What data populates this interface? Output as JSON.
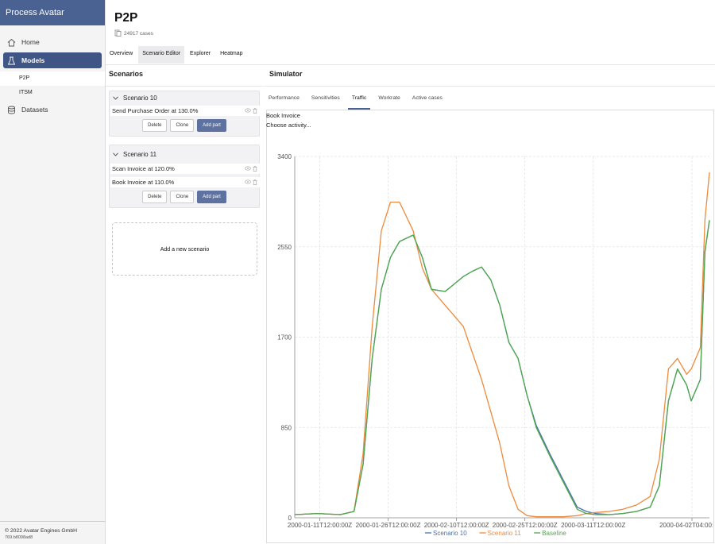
{
  "app": {
    "title": "Process Avatar",
    "footer_copyright": "© 2022 Avatar Engines GmbH",
    "footer_version": "769.b8098ad8"
  },
  "sidebar": {
    "items": [
      {
        "label": "Home",
        "icon": "home-icon"
      },
      {
        "label": "Models",
        "icon": "flask-icon"
      },
      {
        "label": "Datasets",
        "icon": "database-icon"
      }
    ],
    "models": [
      "P2P",
      "ITSM"
    ]
  },
  "header": {
    "title": "P2P",
    "cases": "24917 cases",
    "tabs": [
      "Overview",
      "Scenario Editor",
      "Explorer",
      "Heatmap"
    ]
  },
  "scenarios": {
    "title": "Scenarios",
    "delete_label": "Delete",
    "clone_label": "Clone",
    "add_part_label": "Add part",
    "add_new_label": "Add a new scenario",
    "list": [
      {
        "name": "Scenario 10",
        "parts": [
          "Send Purchase Order at 130.0%"
        ]
      },
      {
        "name": "Scenario 11",
        "parts": [
          "Scan Invoice at 120.0%",
          "Book Invoice at 110.0%"
        ]
      }
    ]
  },
  "simulator": {
    "title": "Simulator",
    "tabs": [
      "Performance",
      "Sensitivities",
      "Traffic",
      "Workrate",
      "Active cases"
    ],
    "active_tab": "Traffic",
    "activity_label": "Book Invoice",
    "activity_placeholder": "Choose activity..."
  },
  "colors": {
    "brand": "#4a6291",
    "active_nav": "#3e5585",
    "primary_button": "#5d729f",
    "scenario10": "#4c72b0",
    "scenario11": "#ed8a3c",
    "baseline": "#4ea84a"
  },
  "chart_data": {
    "type": "line",
    "title": "",
    "xlabel": "",
    "ylabel": "",
    "ylim": [
      0,
      3400
    ],
    "y_ticks": [
      0,
      850,
      1700,
      2550,
      3400
    ],
    "x_tick_labels": [
      "2000-01-11T12:00:00Z",
      "2000-01-26T12:00:00Z",
      "2000-02-10T12:00:00Z",
      "2000-02-25T12:00:00Z",
      "2000-03-11T12:00:00Z",
      "2000-04-02T04:00:00Z"
    ],
    "x": [
      "2000-01-06",
      "2000-01-11",
      "2000-01-16",
      "2000-01-19",
      "2000-01-21",
      "2000-01-23",
      "2000-01-25",
      "2000-01-27",
      "2000-01-29",
      "2000-02-01",
      "2000-02-03",
      "2000-02-05",
      "2000-02-08",
      "2000-02-10",
      "2000-02-12",
      "2000-02-14",
      "2000-02-16",
      "2000-02-18",
      "2000-02-20",
      "2000-02-22",
      "2000-02-24",
      "2000-02-26",
      "2000-02-28",
      "2000-03-02",
      "2000-03-05",
      "2000-03-08",
      "2000-03-10",
      "2000-03-12",
      "2000-03-15",
      "2000-03-18",
      "2000-03-21",
      "2000-03-24",
      "2000-03-26",
      "2000-03-28",
      "2000-03-30",
      "2000-04-01",
      "2000-04-02",
      "2000-04-04",
      "2000-04-05",
      "2000-04-06"
    ],
    "series": [
      {
        "name": "Scenario 10",
        "color": "#4c72b0",
        "values": [
          30,
          40,
          30,
          60,
          500,
          1500,
          2150,
          2450,
          2600,
          2660,
          2450,
          2150,
          2130,
          2200,
          2270,
          2320,
          2360,
          2240,
          2000,
          1650,
          1500,
          1150,
          870,
          600,
          350,
          100,
          60,
          40,
          30,
          40,
          60,
          100,
          300,
          1100,
          1400,
          1250,
          1100,
          1300,
          2500,
          2800
        ]
      },
      {
        "name": "Scenario 11",
        "color": "#ed8a3c",
        "values": [
          30,
          40,
          30,
          60,
          600,
          1800,
          2700,
          2970,
          2970,
          2700,
          2350,
          2150,
          2000,
          1900,
          1800,
          1550,
          1300,
          1000,
          700,
          300,
          80,
          20,
          10,
          10,
          10,
          20,
          40,
          50,
          60,
          80,
          120,
          200,
          550,
          1400,
          1500,
          1350,
          1400,
          1600,
          2800,
          3250
        ]
      },
      {
        "name": "Baseline",
        "color": "#4ea84a",
        "values": [
          30,
          40,
          30,
          60,
          500,
          1500,
          2150,
          2450,
          2600,
          2660,
          2450,
          2150,
          2130,
          2200,
          2270,
          2320,
          2360,
          2240,
          2000,
          1650,
          1500,
          1150,
          850,
          580,
          330,
          80,
          40,
          30,
          30,
          40,
          60,
          100,
          300,
          1100,
          1400,
          1250,
          1100,
          1300,
          2500,
          2800
        ]
      }
    ],
    "legend": "bottom",
    "grid": true
  }
}
